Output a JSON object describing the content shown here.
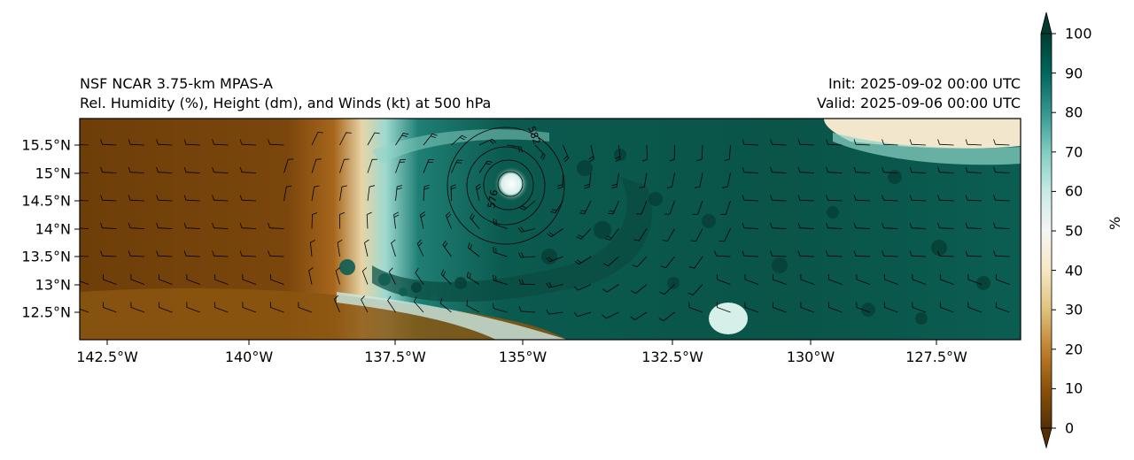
{
  "title": {
    "left_line1": "NSF NCAR 3.75-km MPAS-A",
    "left_line2": "Rel. Humidity (%), Height (dm), and Winds (kt) at 500 hPa",
    "right_line1": "Init: 2025-09-02 00:00 UTC",
    "right_line2": "Valid: 2025-09-06 00:00 UTC"
  },
  "map": {
    "lon_range": [
      -143.5,
      -126.0
    ],
    "lat_range": [
      12.0,
      16.0
    ],
    "lat_ticks": [
      "15.5°N",
      "15°N",
      "14.5°N",
      "14°N",
      "13.5°N",
      "13°N",
      "12.5°N"
    ],
    "lon_ticks": [
      "142.5°W",
      "140°W",
      "137.5°W",
      "135°W",
      "132.5°W",
      "130°W",
      "127.5°W"
    ],
    "contour_labels": [
      "582",
      "576"
    ],
    "storm_center": {
      "lon": -135.2,
      "lat": 14.8
    }
  },
  "colorbar": {
    "unit": "%",
    "ticks": [
      "100",
      "90",
      "80",
      "70",
      "60",
      "50",
      "40",
      "30",
      "20",
      "10",
      "0"
    ],
    "colors": [
      "#543005",
      "#8c510a",
      "#bf812d",
      "#dfc27d",
      "#f6e8c3",
      "#f5f5f5",
      "#c7eae5",
      "#80cdc1",
      "#35978f",
      "#01665e",
      "#003c30"
    ]
  }
}
